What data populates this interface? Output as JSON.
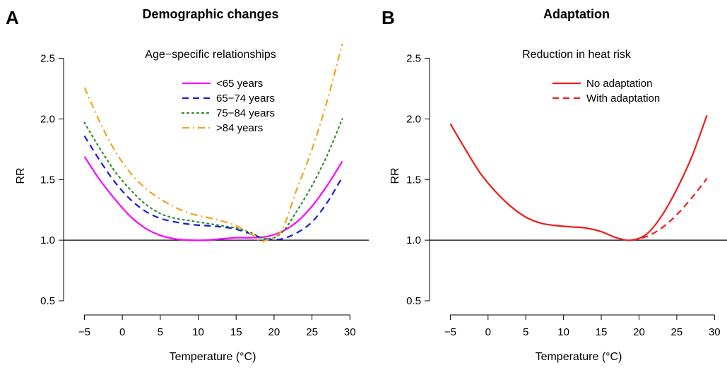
{
  "chart_data": [
    {
      "panel": "A",
      "title": "Demographic changes",
      "type": "line",
      "inset_title": "Age−specific relationships",
      "xlabel": "Temperature (°C)",
      "ylabel": "RR",
      "xlim": [
        -7,
        31
      ],
      "ylim": [
        0.43,
        2.62
      ],
      "xticks": [
        -5,
        0,
        5,
        10,
        15,
        20,
        25,
        30
      ],
      "xtick_labels": [
        "−5",
        "0",
        "5",
        "10",
        "15",
        "20",
        "25",
        "30"
      ],
      "yticks": [
        0.5,
        1.0,
        1.5,
        2.0,
        2.5
      ],
      "ytick_labels": [
        "0.5",
        "1.0",
        "1.5",
        "2.0",
        "2.5"
      ],
      "reference_line": 1.0,
      "legend_position": "top-right",
      "series": [
        {
          "name": "<65 years",
          "color": "#ff00ff",
          "dash": "solid",
          "x": [
            -5,
            -3,
            -1,
            1,
            3,
            5,
            7,
            9,
            11,
            13,
            15,
            17,
            19,
            21,
            23,
            25,
            27,
            29
          ],
          "y": [
            1.69,
            1.5,
            1.34,
            1.2,
            1.1,
            1.04,
            1.01,
            1.0,
            1.0,
            1.01,
            1.02,
            1.02,
            1.03,
            1.07,
            1.15,
            1.28,
            1.45,
            1.65
          ]
        },
        {
          "name": "65−74 years",
          "color": "#1a1ae6",
          "dash": "dashed",
          "x": [
            -5,
            -3,
            -1,
            1,
            3,
            5,
            7,
            9,
            11,
            13,
            15,
            17,
            19,
            21,
            23,
            25,
            27,
            29
          ],
          "y": [
            1.86,
            1.66,
            1.48,
            1.34,
            1.24,
            1.18,
            1.15,
            1.13,
            1.12,
            1.11,
            1.09,
            1.05,
            1.01,
            1.01,
            1.06,
            1.15,
            1.31,
            1.52
          ]
        },
        {
          "name": "75−84 years",
          "color": "#2e8b2e",
          "dash": "dotted",
          "x": [
            -5,
            -3,
            -1,
            1,
            3,
            5,
            7,
            9,
            11,
            13,
            15,
            17,
            19,
            21,
            23,
            25,
            27,
            29
          ],
          "y": [
            1.97,
            1.76,
            1.57,
            1.42,
            1.3,
            1.22,
            1.18,
            1.16,
            1.14,
            1.12,
            1.1,
            1.06,
            1.01,
            1.06,
            1.24,
            1.45,
            1.7,
            2.0
          ]
        },
        {
          "name": ">84 years",
          "color": "#f4a21b",
          "dash": "dashdot",
          "x": [
            -5,
            -3,
            -1,
            1,
            3,
            5,
            7,
            9,
            11,
            13,
            15,
            17,
            18,
            19,
            21,
            23,
            25,
            27,
            29
          ],
          "y": [
            2.26,
            1.98,
            1.74,
            1.56,
            1.43,
            1.34,
            1.27,
            1.22,
            1.19,
            1.16,
            1.12,
            1.05,
            1.0,
            1.0,
            1.08,
            1.42,
            1.75,
            2.15,
            2.62
          ]
        }
      ]
    },
    {
      "panel": "B",
      "title": "Adaptation",
      "type": "line",
      "inset_title": "Reduction in heat risk",
      "xlabel": "Temperature (°C)",
      "ylabel": "RR",
      "xlim": [
        -7,
        31
      ],
      "ylim": [
        0.43,
        2.62
      ],
      "xticks": [
        -5,
        0,
        5,
        10,
        15,
        20,
        25,
        30
      ],
      "xtick_labels": [
        "−5",
        "0",
        "5",
        "10",
        "15",
        "20",
        "25",
        "30"
      ],
      "yticks": [
        0.5,
        1.0,
        1.5,
        2.0,
        2.5
      ],
      "ytick_labels": [
        "0.5",
        "1.0",
        "1.5",
        "2.0",
        "2.5"
      ],
      "reference_line": 1.0,
      "legend_position": "top-right",
      "series": [
        {
          "name": "No adaptation",
          "color": "#ee1c1c",
          "dash": "solid",
          "x": [
            -5,
            -3,
            -1,
            1,
            3,
            5,
            7,
            9,
            11,
            13,
            15,
            17,
            19,
            21,
            23,
            25,
            27,
            29
          ],
          "y": [
            1.96,
            1.75,
            1.55,
            1.4,
            1.28,
            1.19,
            1.14,
            1.12,
            1.11,
            1.1,
            1.07,
            1.02,
            1.0,
            1.05,
            1.2,
            1.42,
            1.69,
            2.03
          ]
        },
        {
          "name": "With adaptation",
          "color": "#ee1c1c",
          "dash": "dashed",
          "x": [
            19,
            21,
            23,
            25,
            27,
            29
          ],
          "y": [
            1.0,
            1.03,
            1.1,
            1.21,
            1.35,
            1.51
          ]
        }
      ]
    }
  ]
}
